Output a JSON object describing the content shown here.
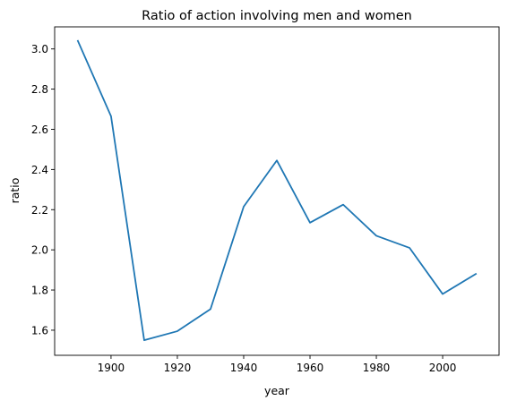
{
  "chart_data": {
    "type": "line",
    "title": "Ratio of action involving men and women",
    "xlabel": "year",
    "ylabel": "ratio",
    "xlim": [
      1883,
      2017
    ],
    "ylim": [
      1.475,
      3.11
    ],
    "xticks": [
      1900,
      1920,
      1940,
      1960,
      1980,
      2000
    ],
    "yticks": [
      1.6,
      1.8,
      2.0,
      2.2,
      2.4,
      2.6,
      2.8,
      3.0
    ],
    "xtick_labels": [
      "1900",
      "1920",
      "1940",
      "1960",
      "1980",
      "2000"
    ],
    "ytick_labels": [
      "1.6",
      "1.8",
      "2.0",
      "2.2",
      "2.4",
      "2.6",
      "2.8",
      "3.0"
    ],
    "grid": false,
    "series": [
      {
        "color": "#1f77b4",
        "x": [
          1890,
          1900,
          1910,
          1920,
          1930,
          1940,
          1950,
          1960,
          1970,
          1980,
          1990,
          2000,
          2010
        ],
        "y": [
          3.04,
          2.665,
          1.55,
          1.595,
          1.705,
          2.215,
          2.445,
          2.135,
          2.225,
          2.07,
          2.01,
          1.78,
          1.88
        ]
      }
    ]
  }
}
